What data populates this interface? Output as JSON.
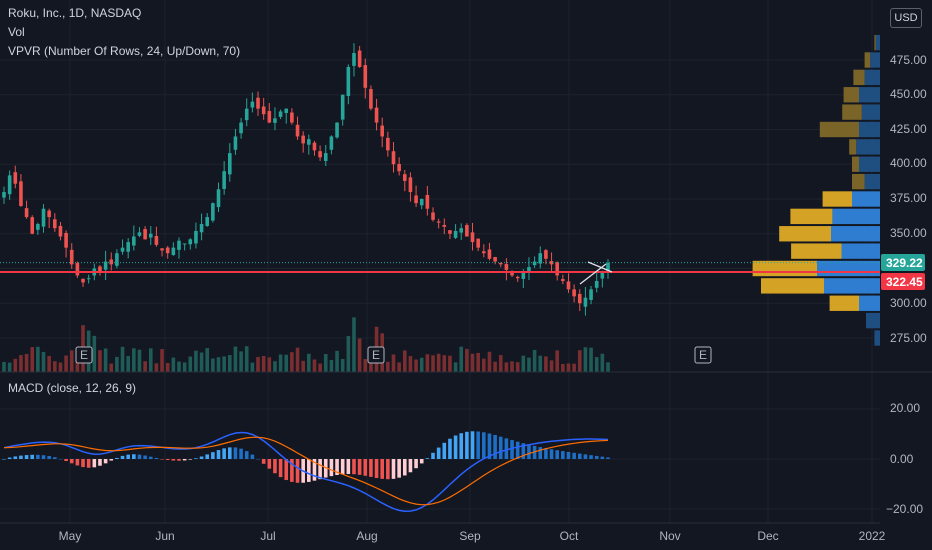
{
  "header": {
    "symbol_line": "Roku, Inc., 1D, NASDAQ",
    "vol_label": "Vol",
    "vpvr_label": "VPVR (Number Of Rows, 24, Up/Down, 70)",
    "currency_button": "USD"
  },
  "macd": {
    "label": "MACD (close, 12, 26, 9)"
  },
  "price_axis": {
    "ticks": [
      "475.00",
      "450.00",
      "425.00",
      "400.00",
      "375.00",
      "350.00",
      "325.00",
      "300.00",
      "275.00"
    ]
  },
  "macd_axis": {
    "ticks": [
      "20.00",
      "0.00",
      "−20.00"
    ]
  },
  "time_axis": {
    "labels": [
      "May",
      "Jun",
      "Jul",
      "Aug",
      "Sep",
      "Oct",
      "Nov",
      "Dec",
      "2022"
    ]
  },
  "badges": {
    "last_price": "329.22",
    "line_price": "322.45"
  },
  "earnings_marker": "E",
  "colors": {
    "background": "#131722",
    "up": "#26a69a",
    "down": "#ef5350",
    "macd_line": "#2962ff",
    "signal_line": "#ff6d00",
    "horizontal_line": "#f23645",
    "vpvr_up": "#2e7dd1",
    "vpvr_down": "#d4a325"
  },
  "chart_data": {
    "type": "candlestick",
    "price_range": [
      265,
      495
    ],
    "horizontal_line": 322.45,
    "last_price": 329.22,
    "series_closes": [
      380,
      392,
      386,
      370,
      362,
      350,
      357,
      368,
      362,
      354,
      348,
      340,
      328,
      320,
      315,
      318,
      325,
      322,
      330,
      328,
      336,
      340,
      344,
      348,
      351,
      346,
      350,
      342,
      338,
      336,
      340,
      345,
      343,
      346,
      352,
      357,
      362,
      372,
      382,
      395,
      408,
      420,
      430,
      440,
      445,
      440,
      436,
      430,
      433,
      438,
      440,
      430,
      420,
      415,
      418,
      410,
      405,
      408,
      420,
      430,
      450,
      470,
      480,
      470,
      455,
      440,
      430,
      420,
      410,
      400,
      395,
      388,
      380,
      372,
      375,
      368,
      360,
      358,
      355,
      350,
      352,
      354,
      348,
      344,
      340,
      336,
      332,
      330,
      328,
      324,
      320,
      318,
      322,
      326,
      330,
      336,
      332,
      328,
      320,
      316,
      310,
      305,
      300,
      304,
      310,
      316,
      322,
      329
    ],
    "macd_range": [
      -25,
      30
    ],
    "vpvr_levels": [
      {
        "price": 487.5,
        "up": 6,
        "down": 2
      },
      {
        "price": 475,
        "up": 14,
        "down": 8
      },
      {
        "price": 462.5,
        "up": 22,
        "down": 16
      },
      {
        "price": 450,
        "up": 30,
        "down": 22
      },
      {
        "price": 437.5,
        "up": 26,
        "down": 28
      },
      {
        "price": 425,
        "up": 30,
        "down": 56
      },
      {
        "price": 412.5,
        "up": 34,
        "down": 10
      },
      {
        "price": 400,
        "up": 30,
        "down": 10
      },
      {
        "price": 387.5,
        "up": 22,
        "down": 18
      },
      {
        "price": 375,
        "up": 40,
        "down": 42
      },
      {
        "price": 362.5,
        "up": 68,
        "down": 60
      },
      {
        "price": 350,
        "up": 70,
        "down": 74
      },
      {
        "price": 337.5,
        "up": 55,
        "down": 72
      },
      {
        "price": 325,
        "up": 90,
        "down": 92
      },
      {
        "price": 312.5,
        "up": 80,
        "down": 90
      },
      {
        "price": 300,
        "up": 30,
        "down": 42
      },
      {
        "price": 287.5,
        "up": 20,
        "down": 0
      },
      {
        "price": 275,
        "up": 8,
        "down": 0
      }
    ]
  }
}
